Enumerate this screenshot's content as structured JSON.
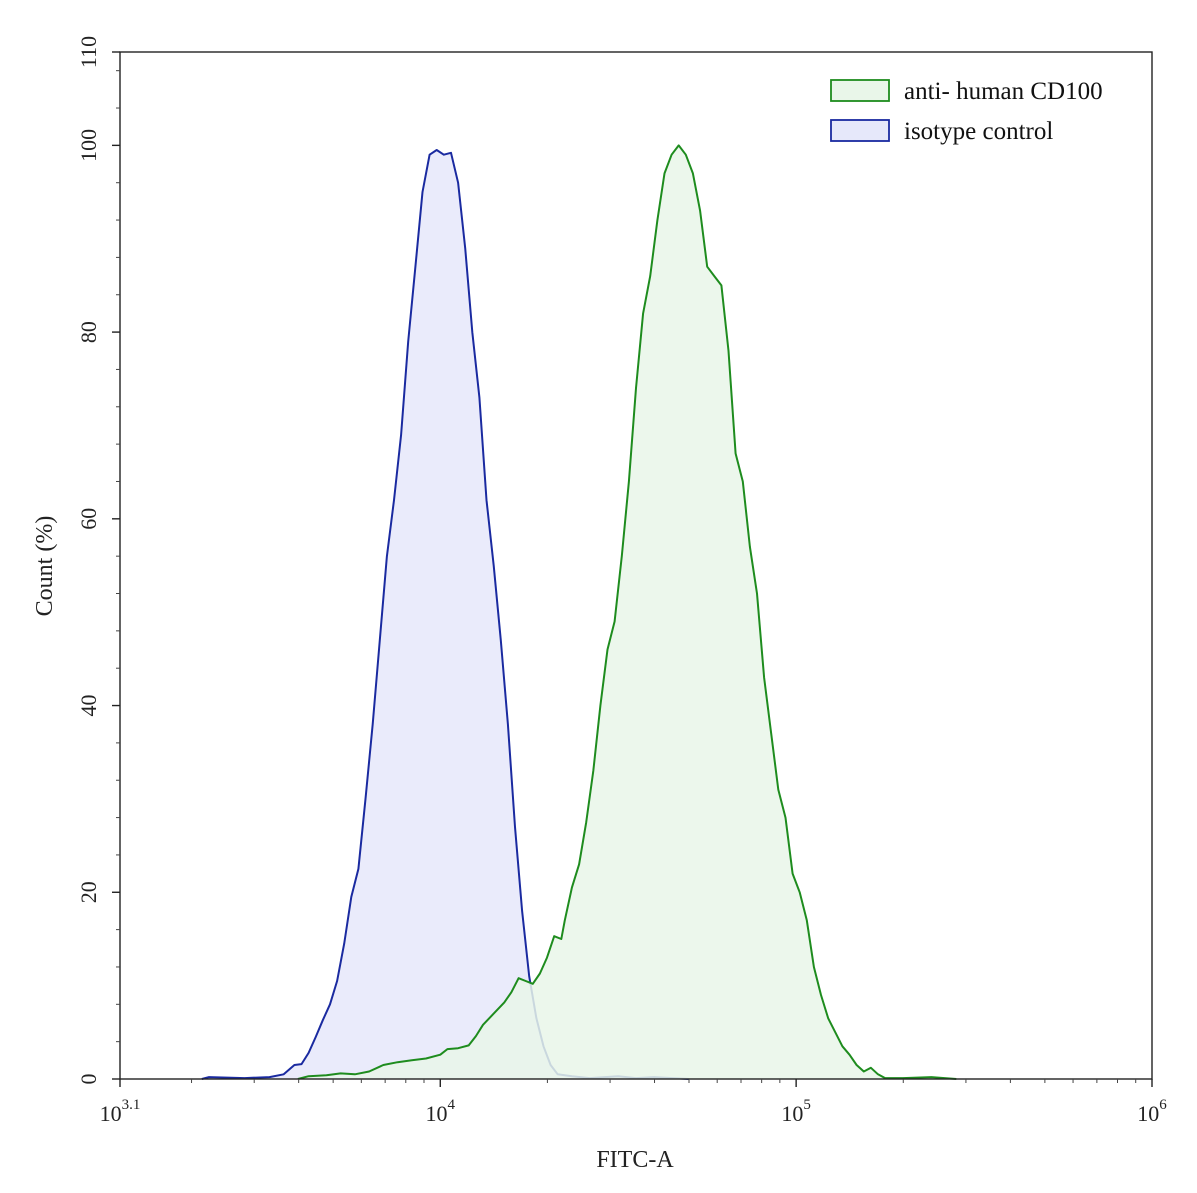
{
  "chart_data": {
    "type": "area",
    "xlabel": "FITC-A",
    "ylabel": "Count  (%)",
    "x_scale": "log10",
    "xlim_exponent": [
      3.1,
      6
    ],
    "ylim": [
      0,
      110
    ],
    "x_ticks": [
      {
        "base": "10",
        "exp": "3.1",
        "value": 3.1
      },
      {
        "base": "10",
        "exp": "4",
        "value": 4
      },
      {
        "base": "10",
        "exp": "5",
        "value": 5
      },
      {
        "base": "10",
        "exp": "6",
        "value": 6
      }
    ],
    "y_ticks": [
      {
        "label": "0",
        "value": 0
      },
      {
        "label": "20",
        "value": 20
      },
      {
        "label": "40",
        "value": 40
      },
      {
        "label": "60",
        "value": 60
      },
      {
        "label": "80",
        "value": 80
      },
      {
        "label": "100",
        "value": 100
      },
      {
        "label": "110",
        "value": 110
      }
    ],
    "legend_position": "top-right",
    "grid": false,
    "series": [
      {
        "name": "anti- human CD100",
        "stroke": "#1e8c1e",
        "fill": "#e9f6e9",
        "points": [
          [
            3.6,
            0
          ],
          [
            3.63,
            0.3
          ],
          [
            3.68,
            0.4
          ],
          [
            3.72,
            0.6
          ],
          [
            3.76,
            0.5
          ],
          [
            3.8,
            0.8
          ],
          [
            3.84,
            1.5
          ],
          [
            3.88,
            1.8
          ],
          [
            3.92,
            2.0
          ],
          [
            3.96,
            2.2
          ],
          [
            4.0,
            2.6
          ],
          [
            4.02,
            3.2
          ],
          [
            4.05,
            3.3
          ],
          [
            4.08,
            3.6
          ],
          [
            4.1,
            4.6
          ],
          [
            4.12,
            5.8
          ],
          [
            4.15,
            7.0
          ],
          [
            4.18,
            8.2
          ],
          [
            4.2,
            9.3
          ],
          [
            4.22,
            10.8
          ],
          [
            4.24,
            10.5
          ],
          [
            4.26,
            10.2
          ],
          [
            4.28,
            11.3
          ],
          [
            4.3,
            13.0
          ],
          [
            4.32,
            15.3
          ],
          [
            4.34,
            15.0
          ],
          [
            4.35,
            17.0
          ],
          [
            4.37,
            20.5
          ],
          [
            4.39,
            23.0
          ],
          [
            4.41,
            27.5
          ],
          [
            4.43,
            33.0
          ],
          [
            4.45,
            40.0
          ],
          [
            4.47,
            46.0
          ],
          [
            4.49,
            49.0
          ],
          [
            4.51,
            56.0
          ],
          [
            4.53,
            64.0
          ],
          [
            4.55,
            74.0
          ],
          [
            4.57,
            82.0
          ],
          [
            4.59,
            86.0
          ],
          [
            4.61,
            92.0
          ],
          [
            4.63,
            97.0
          ],
          [
            4.65,
            99.0
          ],
          [
            4.67,
            100.0
          ],
          [
            4.69,
            99.0
          ],
          [
            4.71,
            97.0
          ],
          [
            4.73,
            93.0
          ],
          [
            4.75,
            87.0
          ],
          [
            4.77,
            86.0
          ],
          [
            4.79,
            85.0
          ],
          [
            4.81,
            78.0
          ],
          [
            4.83,
            67.0
          ],
          [
            4.85,
            64.0
          ],
          [
            4.87,
            57.0
          ],
          [
            4.89,
            52.0
          ],
          [
            4.91,
            43.0
          ],
          [
            4.93,
            37.0
          ],
          [
            4.95,
            31.0
          ],
          [
            4.97,
            28.0
          ],
          [
            4.99,
            22.0
          ],
          [
            5.01,
            20.0
          ],
          [
            5.03,
            17.0
          ],
          [
            5.05,
            12.0
          ],
          [
            5.07,
            9.0
          ],
          [
            5.09,
            6.5
          ],
          [
            5.11,
            5.0
          ],
          [
            5.13,
            3.5
          ],
          [
            5.15,
            2.6
          ],
          [
            5.17,
            1.5
          ],
          [
            5.19,
            0.8
          ],
          [
            5.21,
            1.2
          ],
          [
            5.23,
            0.5
          ],
          [
            5.25,
            0.1
          ],
          [
            5.3,
            0.1
          ],
          [
            5.38,
            0.2
          ],
          [
            5.45,
            0
          ]
        ]
      },
      {
        "name": "isotype control",
        "stroke": "#1a2aa0",
        "fill": "#e6e8fa",
        "points": [
          [
            3.33,
            0
          ],
          [
            3.35,
            0.2
          ],
          [
            3.45,
            0.1
          ],
          [
            3.52,
            0.2
          ],
          [
            3.56,
            0.5
          ],
          [
            3.59,
            1.5
          ],
          [
            3.61,
            1.6
          ],
          [
            3.63,
            2.8
          ],
          [
            3.65,
            4.5
          ],
          [
            3.67,
            6.3
          ],
          [
            3.69,
            8.0
          ],
          [
            3.71,
            10.5
          ],
          [
            3.73,
            14.5
          ],
          [
            3.75,
            19.5
          ],
          [
            3.77,
            22.5
          ],
          [
            3.79,
            30.0
          ],
          [
            3.81,
            38.0
          ],
          [
            3.83,
            47.0
          ],
          [
            3.85,
            56.0
          ],
          [
            3.87,
            62.0
          ],
          [
            3.89,
            69.0
          ],
          [
            3.91,
            79.0
          ],
          [
            3.93,
            87.0
          ],
          [
            3.95,
            95.0
          ],
          [
            3.97,
            99.0
          ],
          [
            3.99,
            99.5
          ],
          [
            4.01,
            99.0
          ],
          [
            4.03,
            99.2
          ],
          [
            4.05,
            96.0
          ],
          [
            4.07,
            89.0
          ],
          [
            4.09,
            80.0
          ],
          [
            4.11,
            73.0
          ],
          [
            4.13,
            62.0
          ],
          [
            4.15,
            55.0
          ],
          [
            4.17,
            47.0
          ],
          [
            4.19,
            38.0
          ],
          [
            4.21,
            27.0
          ],
          [
            4.23,
            18.0
          ],
          [
            4.25,
            11.0
          ],
          [
            4.27,
            6.5
          ],
          [
            4.29,
            3.5
          ],
          [
            4.31,
            1.5
          ],
          [
            4.33,
            0.5
          ],
          [
            4.37,
            0.3
          ],
          [
            4.42,
            0.1
          ],
          [
            4.5,
            0.3
          ],
          [
            4.55,
            0.1
          ],
          [
            4.6,
            0.2
          ],
          [
            4.7,
            0
          ]
        ]
      }
    ]
  }
}
